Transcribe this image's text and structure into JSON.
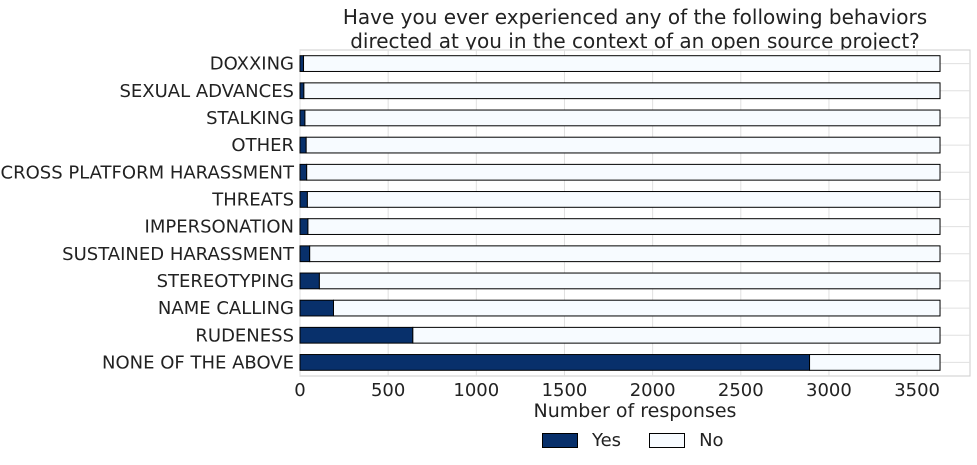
{
  "chart_data": {
    "type": "bar",
    "orientation": "horizontal",
    "stacked": true,
    "title_lines": [
      "Have you ever experienced any of the following behaviors",
      "directed at you in the context of an open source project?"
    ],
    "xlabel": "Number of responses",
    "ylabel": "",
    "xlim": [
      0,
      3800
    ],
    "xticks": [
      0,
      500,
      1000,
      1500,
      2000,
      2500,
      3000,
      3500
    ],
    "grid": true,
    "legend_position": "bottom-center",
    "categories": [
      "DOXXING",
      "SEXUAL ADVANCES",
      "STALKING",
      "OTHER",
      "CROSS PLATFORM HARASSMENT",
      "THREATS",
      "IMPERSONATION",
      "SUSTAINED HARASSMENT",
      "STEREOTYPING",
      "NAME CALLING",
      "RUDENESS",
      "NONE OF THE ABOVE"
    ],
    "series": [
      {
        "name": "Yes",
        "color": "#08306b",
        "values": [
          20,
          22,
          28,
          35,
          38,
          42,
          45,
          55,
          110,
          190,
          640,
          2890
        ]
      },
      {
        "name": "No",
        "color": "#f7fbff",
        "values": [
          3610,
          3608,
          3602,
          3595,
          3592,
          3588,
          3585,
          3575,
          3520,
          3440,
          2990,
          740
        ]
      }
    ]
  }
}
